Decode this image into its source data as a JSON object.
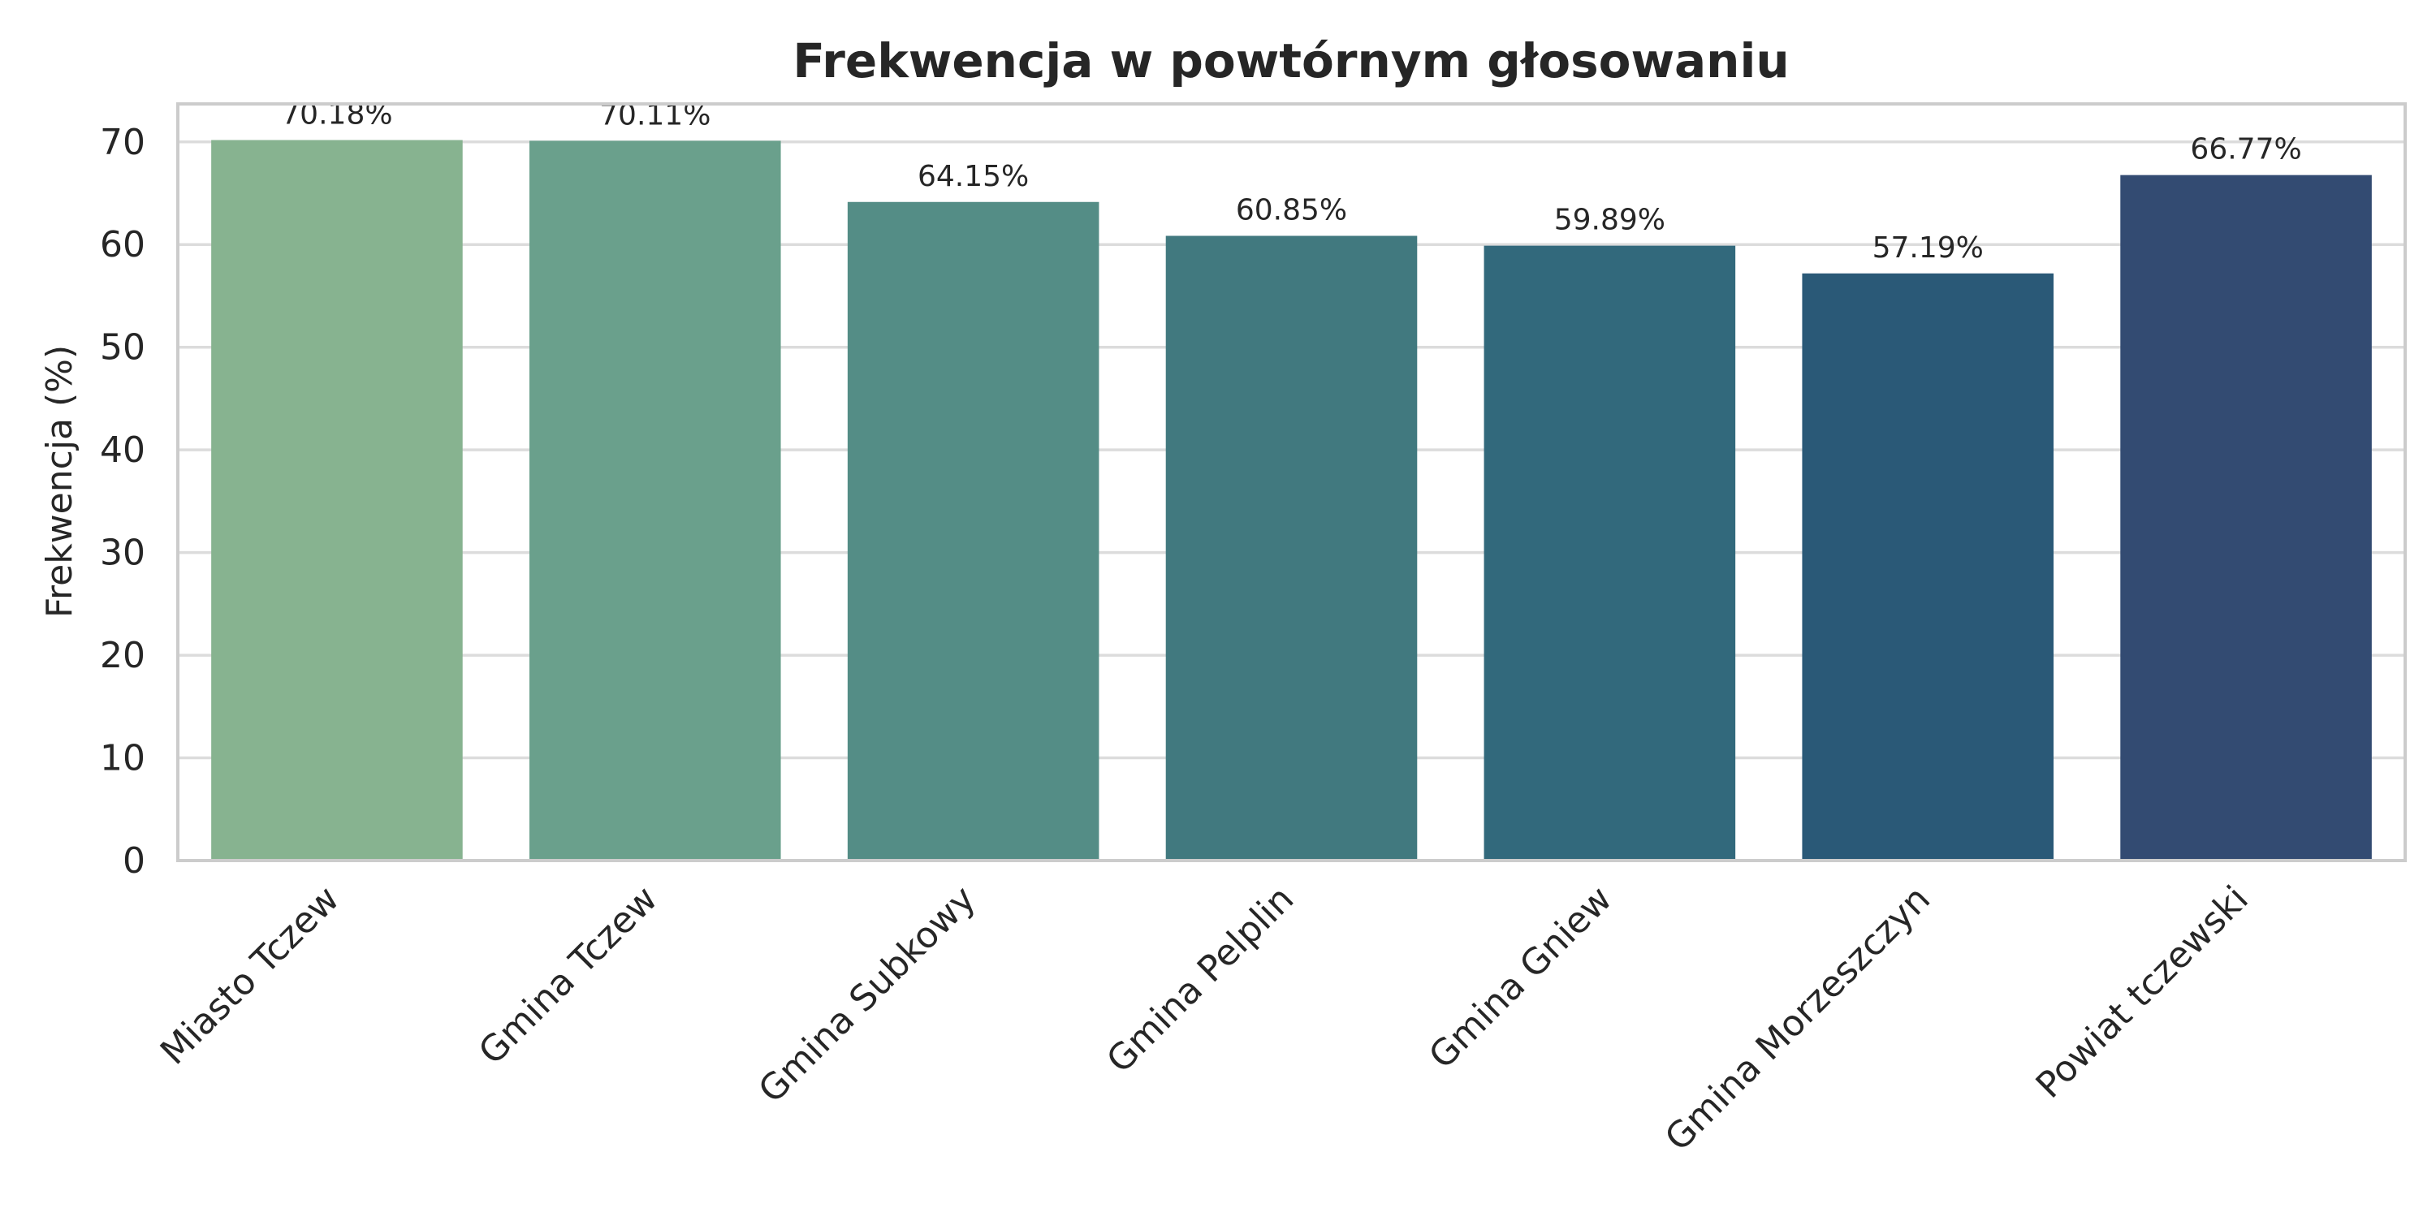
{
  "chart_data": {
    "type": "bar",
    "title": "Frekwencja w powtórnym głosowaniu",
    "xlabel": "",
    "ylabel": "Frekwencja (%)",
    "categories": [
      "Miasto Tczew",
      "Gmina Tczew",
      "Gmina Subkowy",
      "Gmina Pelplin",
      "Gmina Gniew",
      "Gmina Morzeszczyn",
      "Powiat tczewski"
    ],
    "values": [
      70.18,
      70.11,
      64.15,
      60.85,
      59.89,
      57.19,
      66.77
    ],
    "data_labels": [
      "70.18%",
      "70.11%",
      "64.15%",
      "60.85%",
      "59.89%",
      "57.19%",
      "66.77%"
    ],
    "ylim": [
      0,
      73.7
    ],
    "yticks": [
      0,
      10,
      20,
      30,
      40,
      50,
      60,
      70
    ],
    "grid": true,
    "legend": "none",
    "colors": [
      "#87b390",
      "#6aa08c",
      "#548d86",
      "#41797f",
      "#32697c",
      "#2a5977",
      "#334b72"
    ]
  }
}
